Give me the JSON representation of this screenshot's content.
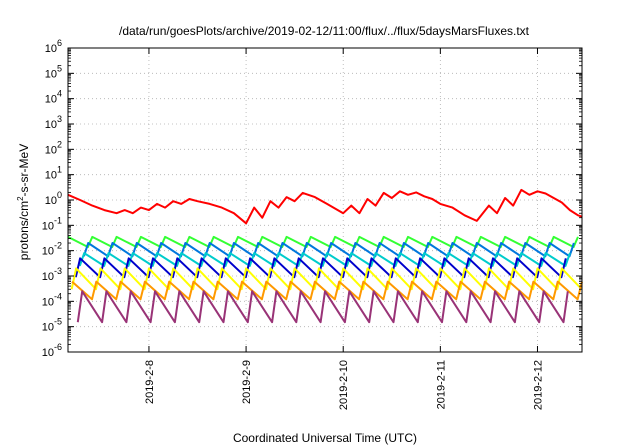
{
  "chart_data": {
    "type": "line",
    "title": "/data/run/goesPlots/archive/2019-02-12/11:00/flux/../flux/5daysMarsFluxes.txt",
    "xlabel": "Coordinated Universal Time (UTC)",
    "ylabel": "protons/cm²-s-sr-MeV",
    "ylabel_parts": {
      "pre": "protons/cm",
      "sup": "2",
      "post": "-s-sr-MeV"
    },
    "xlim": [
      "2019-02-07T04:00",
      "2019-02-12T11:00"
    ],
    "x_ticks": [
      "2019-2-8",
      "2019-2-9",
      "2019-2-10",
      "2019-2-11",
      "2019-2-12"
    ],
    "x_tick_values": [
      "2019-02-08",
      "2019-02-09",
      "2019-02-10",
      "2019-02-11",
      "2019-02-12"
    ],
    "y_scale": "log",
    "ylim": [
      1e-06,
      1000000.0
    ],
    "y_ticks": [
      {
        "base": "10",
        "exp": "-6",
        "value": 1e-06
      },
      {
        "base": "10",
        "exp": "-5",
        "value": 1e-05
      },
      {
        "base": "10",
        "exp": "-4",
        "value": 0.0001
      },
      {
        "base": "10",
        "exp": "-3",
        "value": 0.001
      },
      {
        "base": "10",
        "exp": "-2",
        "value": 0.01
      },
      {
        "base": "10",
        "exp": "-1",
        "value": 0.1
      },
      {
        "base": "10",
        "exp": "0",
        "value": 1
      },
      {
        "base": "10",
        "exp": "1",
        "value": 10
      },
      {
        "base": "10",
        "exp": "2",
        "value": 100
      },
      {
        "base": "10",
        "exp": "3",
        "value": 1000
      },
      {
        "base": "10",
        "exp": "4",
        "value": 10000
      },
      {
        "base": "10",
        "exp": "5",
        "value": 100000
      },
      {
        "base": "10",
        "exp": "6",
        "value": 1000000
      }
    ],
    "grid": true,
    "series": [
      {
        "color": "#ff0000",
        "x": [
          "2019-02-07T04:00",
          "2019-02-07T07:00",
          "2019-02-07T10:00",
          "2019-02-07T13:00",
          "2019-02-07T16:00",
          "2019-02-07T18:00",
          "2019-02-07T20:00",
          "2019-02-07T22:00",
          "2019-02-08T00:00",
          "2019-02-08T02:00",
          "2019-02-08T04:00",
          "2019-02-08T06:00",
          "2019-02-08T08:00",
          "2019-02-08T10:00",
          "2019-02-08T12:00",
          "2019-02-08T15:00",
          "2019-02-08T18:00",
          "2019-02-08T21:00",
          "2019-02-09T00:00",
          "2019-02-09T02:00",
          "2019-02-09T04:00",
          "2019-02-09T06:00",
          "2019-02-09T08:00",
          "2019-02-09T10:00",
          "2019-02-09T12:00",
          "2019-02-09T14:00",
          "2019-02-09T17:00",
          "2019-02-09T20:00",
          "2019-02-10T00:00",
          "2019-02-10T02:00",
          "2019-02-10T04:00",
          "2019-02-10T06:00",
          "2019-02-10T08:00",
          "2019-02-10T10:00",
          "2019-02-10T12:00",
          "2019-02-10T14:00",
          "2019-02-10T16:00",
          "2019-02-10T18:00",
          "2019-02-10T20:00",
          "2019-02-10T22:00",
          "2019-02-11T00:00",
          "2019-02-11T03:00",
          "2019-02-11T06:00",
          "2019-02-11T09:00",
          "2019-02-11T12:00",
          "2019-02-11T14:00",
          "2019-02-11T16:00",
          "2019-02-11T18:00",
          "2019-02-11T20:00",
          "2019-02-11T22:00",
          "2019-02-12T00:00",
          "2019-02-12T02:00",
          "2019-02-12T04:00",
          "2019-02-12T06:00",
          "2019-02-12T08:00",
          "2019-02-12T10:00",
          "2019-02-12T11:00"
        ],
        "y": [
          1.6,
          1.0,
          0.6,
          0.4,
          0.3,
          0.4,
          0.3,
          0.5,
          0.4,
          0.7,
          0.5,
          0.9,
          0.7,
          1.1,
          0.9,
          0.7,
          0.5,
          0.3,
          0.12,
          0.5,
          0.2,
          0.9,
          0.5,
          1.3,
          0.9,
          1.9,
          1.3,
          0.7,
          0.3,
          0.6,
          0.3,
          1.1,
          0.6,
          1.9,
          1.2,
          2.2,
          1.6,
          2.0,
          1.4,
          1.1,
          0.7,
          0.5,
          0.25,
          0.15,
          0.6,
          0.3,
          1.2,
          0.6,
          2.5,
          1.6,
          2.2,
          1.8,
          1.2,
          0.8,
          0.4,
          0.25,
          0.22
        ]
      },
      {
        "color": "#33ff33",
        "pattern": "sawtooth",
        "peak": 0.035,
        "trough": 0.014,
        "period_hours": 6,
        "phase_hours": 0
      },
      {
        "color": "#0077dd",
        "pattern": "sawtooth",
        "peak": 0.02,
        "trough": 0.006,
        "period_hours": 6,
        "phase_hours": 1
      },
      {
        "color": "#00cccc",
        "pattern": "sawtooth",
        "peak": 0.008,
        "trough": 0.0025,
        "period_hours": 6,
        "phase_hours": 2
      },
      {
        "color": "#0000cc",
        "pattern": "sawtooth",
        "peak": 0.005,
        "trough": 0.0009,
        "period_hours": 6,
        "phase_hours": 3
      },
      {
        "color": "#ffff00",
        "pattern": "sawtooth",
        "peak": 0.002,
        "trough": 0.0003,
        "period_hours": 6,
        "phase_hours": 4
      },
      {
        "color": "#ff9900",
        "pattern": "sawtooth",
        "peak": 0.0006,
        "trough": 0.00012,
        "period_hours": 6,
        "phase_hours": 5
      },
      {
        "color": "#993377",
        "pattern": "sawtooth",
        "peak": 0.00025,
        "trough": 1.5e-05,
        "period_hours": 6,
        "phase_hours": 2.5
      }
    ]
  }
}
